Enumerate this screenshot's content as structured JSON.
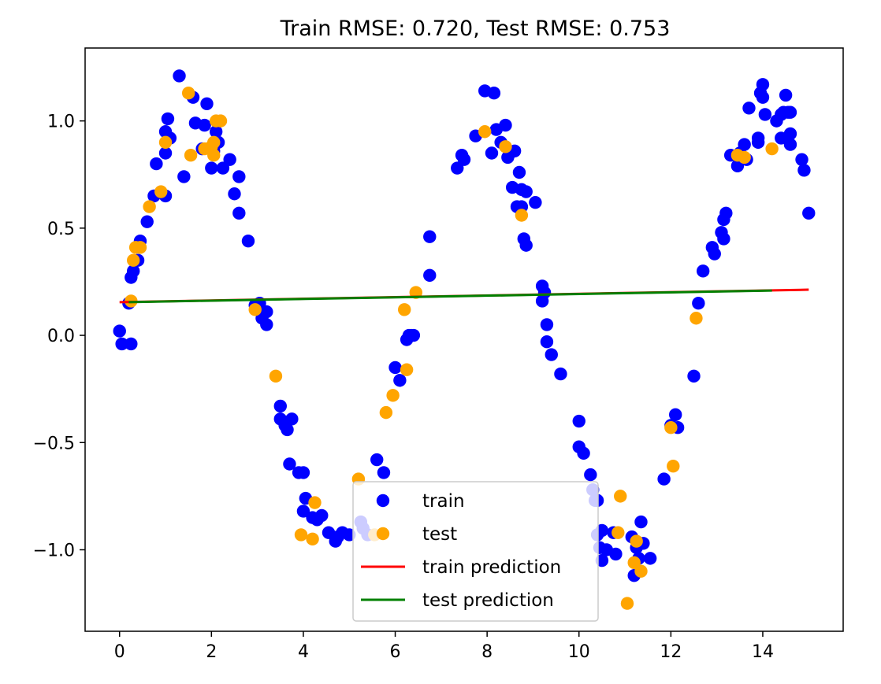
{
  "chart_data": {
    "type": "scatter",
    "title": "Train RMSE: 0.720, Test RMSE: 0.753",
    "xlabel": "",
    "ylabel": "",
    "xlim": [
      -0.75,
      15.75
    ],
    "ylim": [
      -1.38,
      1.34
    ],
    "x_ticks": [
      0,
      2,
      4,
      6,
      8,
      10,
      12,
      14
    ],
    "x_tick_labels": [
      "0",
      "2",
      "4",
      "6",
      "8",
      "10",
      "12",
      "14"
    ],
    "y_ticks": [
      -1.0,
      -0.5,
      0.0,
      0.5,
      1.0
    ],
    "y_tick_labels": [
      "−1.0",
      "−0.5",
      "0.0",
      "0.5",
      "1.0"
    ],
    "grid": false,
    "legend_position": "lower center",
    "series": [
      {
        "name": "train",
        "kind": "scatter",
        "color": "#0000ff",
        "points": [
          [
            0.0,
            0.02
          ],
          [
            0.05,
            -0.04
          ],
          [
            0.2,
            0.15
          ],
          [
            0.25,
            -0.04
          ],
          [
            0.25,
            0.27
          ],
          [
            0.3,
            0.3
          ],
          [
            0.4,
            0.35
          ],
          [
            0.45,
            0.44
          ],
          [
            0.6,
            0.53
          ],
          [
            0.75,
            0.65
          ],
          [
            0.8,
            0.8
          ],
          [
            1.0,
            0.85
          ],
          [
            1.0,
            0.65
          ],
          [
            1.0,
            0.95
          ],
          [
            1.05,
            1.01
          ],
          [
            1.1,
            0.92
          ],
          [
            1.3,
            1.21
          ],
          [
            1.4,
            0.74
          ],
          [
            1.6,
            1.11
          ],
          [
            1.65,
            0.99
          ],
          [
            1.8,
            0.87
          ],
          [
            1.85,
            0.98
          ],
          [
            1.9,
            1.08
          ],
          [
            2.0,
            0.78
          ],
          [
            2.05,
            0.86
          ],
          [
            2.1,
            0.95
          ],
          [
            2.15,
            0.9
          ],
          [
            2.25,
            0.78
          ],
          [
            2.4,
            0.82
          ],
          [
            2.5,
            0.66
          ],
          [
            2.6,
            0.57
          ],
          [
            2.6,
            0.74
          ],
          [
            2.8,
            0.44
          ],
          [
            2.95,
            0.14
          ],
          [
            3.05,
            0.15
          ],
          [
            3.1,
            0.08
          ],
          [
            3.2,
            0.11
          ],
          [
            3.2,
            0.05
          ],
          [
            3.5,
            -0.33
          ],
          [
            3.5,
            -0.39
          ],
          [
            3.6,
            -0.42
          ],
          [
            3.65,
            -0.44
          ],
          [
            3.7,
            -0.6
          ],
          [
            3.75,
            -0.39
          ],
          [
            3.9,
            -0.64
          ],
          [
            4.0,
            -0.64
          ],
          [
            4.0,
            -0.82
          ],
          [
            4.05,
            -0.76
          ],
          [
            4.2,
            -0.85
          ],
          [
            4.3,
            -0.86
          ],
          [
            4.4,
            -0.84
          ],
          [
            4.55,
            -0.92
          ],
          [
            4.7,
            -0.96
          ],
          [
            4.75,
            -0.94
          ],
          [
            4.85,
            -0.92
          ],
          [
            5.0,
            -0.93
          ],
          [
            5.25,
            -0.87
          ],
          [
            5.3,
            -0.9
          ],
          [
            5.4,
            -0.93
          ],
          [
            5.6,
            -0.58
          ],
          [
            5.75,
            -0.64
          ],
          [
            6.0,
            -0.15
          ],
          [
            6.1,
            -0.21
          ],
          [
            6.25,
            -0.02
          ],
          [
            6.3,
            0.0
          ],
          [
            6.35,
            0.0
          ],
          [
            6.4,
            0.0
          ],
          [
            6.75,
            0.46
          ],
          [
            6.75,
            0.28
          ],
          [
            7.35,
            0.78
          ],
          [
            7.45,
            0.84
          ],
          [
            7.5,
            0.82
          ],
          [
            7.75,
            0.93
          ],
          [
            7.95,
            1.14
          ],
          [
            8.1,
            0.85
          ],
          [
            8.15,
            1.13
          ],
          [
            8.2,
            0.96
          ],
          [
            8.3,
            0.9
          ],
          [
            8.4,
            0.98
          ],
          [
            8.45,
            0.83
          ],
          [
            8.5,
            0.85
          ],
          [
            8.6,
            0.86
          ],
          [
            8.55,
            0.69
          ],
          [
            8.65,
            0.6
          ],
          [
            8.7,
            0.76
          ],
          [
            8.75,
            0.6
          ],
          [
            8.75,
            0.68
          ],
          [
            8.8,
            0.45
          ],
          [
            8.85,
            0.42
          ],
          [
            8.85,
            0.67
          ],
          [
            9.05,
            0.62
          ],
          [
            9.2,
            0.23
          ],
          [
            9.2,
            0.16
          ],
          [
            9.25,
            0.2
          ],
          [
            9.3,
            0.05
          ],
          [
            9.3,
            -0.03
          ],
          [
            9.4,
            -0.09
          ],
          [
            9.6,
            -0.18
          ],
          [
            10.0,
            -0.4
          ],
          [
            10.0,
            -0.52
          ],
          [
            10.1,
            -0.55
          ],
          [
            10.25,
            -0.65
          ],
          [
            10.3,
            -0.72
          ],
          [
            10.35,
            -0.77
          ],
          [
            10.4,
            -0.77
          ],
          [
            10.4,
            -0.93
          ],
          [
            10.45,
            -0.99
          ],
          [
            10.5,
            -0.91
          ],
          [
            10.5,
            -1.05
          ],
          [
            10.6,
            -1.0
          ],
          [
            10.75,
            -0.92
          ],
          [
            10.8,
            -1.02
          ],
          [
            11.15,
            -0.94
          ],
          [
            11.2,
            -1.12
          ],
          [
            11.25,
            -0.99
          ],
          [
            11.3,
            -1.04
          ],
          [
            11.35,
            -0.87
          ],
          [
            11.4,
            -0.97
          ],
          [
            11.55,
            -1.04
          ],
          [
            11.85,
            -0.67
          ],
          [
            12.0,
            -0.42
          ],
          [
            12.1,
            -0.37
          ],
          [
            12.15,
            -0.43
          ],
          [
            12.5,
            -0.19
          ],
          [
            12.6,
            0.15
          ],
          [
            12.7,
            0.3
          ],
          [
            12.9,
            0.41
          ],
          [
            12.95,
            0.38
          ],
          [
            13.1,
            0.48
          ],
          [
            13.15,
            0.54
          ],
          [
            13.15,
            0.45
          ],
          [
            13.2,
            0.57
          ],
          [
            13.3,
            0.84
          ],
          [
            13.45,
            0.79
          ],
          [
            13.5,
            0.85
          ],
          [
            13.6,
            0.89
          ],
          [
            13.65,
            0.82
          ],
          [
            13.7,
            1.06
          ],
          [
            13.9,
            0.92
          ],
          [
            13.9,
            0.9
          ],
          [
            13.95,
            1.13
          ],
          [
            14.0,
            1.17
          ],
          [
            14.0,
            1.11
          ],
          [
            14.05,
            1.03
          ],
          [
            14.3,
            1.0
          ],
          [
            14.4,
            0.92
          ],
          [
            14.4,
            1.03
          ],
          [
            14.45,
            1.04
          ],
          [
            14.5,
            1.12
          ],
          [
            14.55,
            1.04
          ],
          [
            14.6,
            0.89
          ],
          [
            14.6,
            0.94
          ],
          [
            14.6,
            1.04
          ],
          [
            14.85,
            0.82
          ],
          [
            14.9,
            0.77
          ],
          [
            15.0,
            0.57
          ]
        ]
      },
      {
        "name": "test",
        "kind": "scatter",
        "color": "#ffa500",
        "points": [
          [
            0.25,
            0.16
          ],
          [
            0.3,
            0.35
          ],
          [
            0.35,
            0.41
          ],
          [
            0.45,
            0.41
          ],
          [
            0.65,
            0.6
          ],
          [
            0.9,
            0.67
          ],
          [
            1.0,
            0.9
          ],
          [
            1.5,
            1.13
          ],
          [
            1.55,
            0.84
          ],
          [
            1.85,
            0.87
          ],
          [
            2.0,
            0.88
          ],
          [
            2.05,
            0.9
          ],
          [
            2.05,
            0.84
          ],
          [
            2.1,
            1.0
          ],
          [
            2.2,
            1.0
          ],
          [
            2.95,
            0.12
          ],
          [
            3.4,
            -0.19
          ],
          [
            3.95,
            -0.93
          ],
          [
            4.2,
            -0.95
          ],
          [
            4.25,
            -0.78
          ],
          [
            5.2,
            -0.67
          ],
          [
            5.55,
            -0.93
          ],
          [
            5.8,
            -0.36
          ],
          [
            5.95,
            -0.28
          ],
          [
            6.2,
            0.12
          ],
          [
            6.25,
            -0.16
          ],
          [
            6.45,
            0.2
          ],
          [
            7.95,
            0.95
          ],
          [
            8.4,
            0.88
          ],
          [
            8.75,
            0.56
          ],
          [
            10.85,
            -0.92
          ],
          [
            10.9,
            -0.75
          ],
          [
            11.05,
            -1.25
          ],
          [
            11.2,
            -1.06
          ],
          [
            11.25,
            -0.96
          ],
          [
            11.35,
            -1.1
          ],
          [
            12.0,
            -0.43
          ],
          [
            12.05,
            -0.61
          ],
          [
            12.55,
            0.08
          ],
          [
            13.45,
            0.84
          ],
          [
            13.6,
            0.83
          ],
          [
            14.2,
            0.87
          ]
        ]
      },
      {
        "name": "train prediction",
        "kind": "line",
        "color": "#ff0000",
        "points": [
          [
            0.0,
            0.155
          ],
          [
            15.0,
            0.213
          ]
        ]
      },
      {
        "name": "test prediction",
        "kind": "line",
        "color": "#008000",
        "points": [
          [
            0.2,
            0.155
          ],
          [
            14.2,
            0.209
          ]
        ]
      }
    ],
    "legend": [
      {
        "label": "train",
        "kind": "scatter",
        "color": "#0000ff"
      },
      {
        "label": "test",
        "kind": "scatter",
        "color": "#ffa500"
      },
      {
        "label": "train prediction",
        "kind": "line",
        "color": "#ff0000"
      },
      {
        "label": "test prediction",
        "kind": "line",
        "color": "#008000"
      }
    ]
  }
}
